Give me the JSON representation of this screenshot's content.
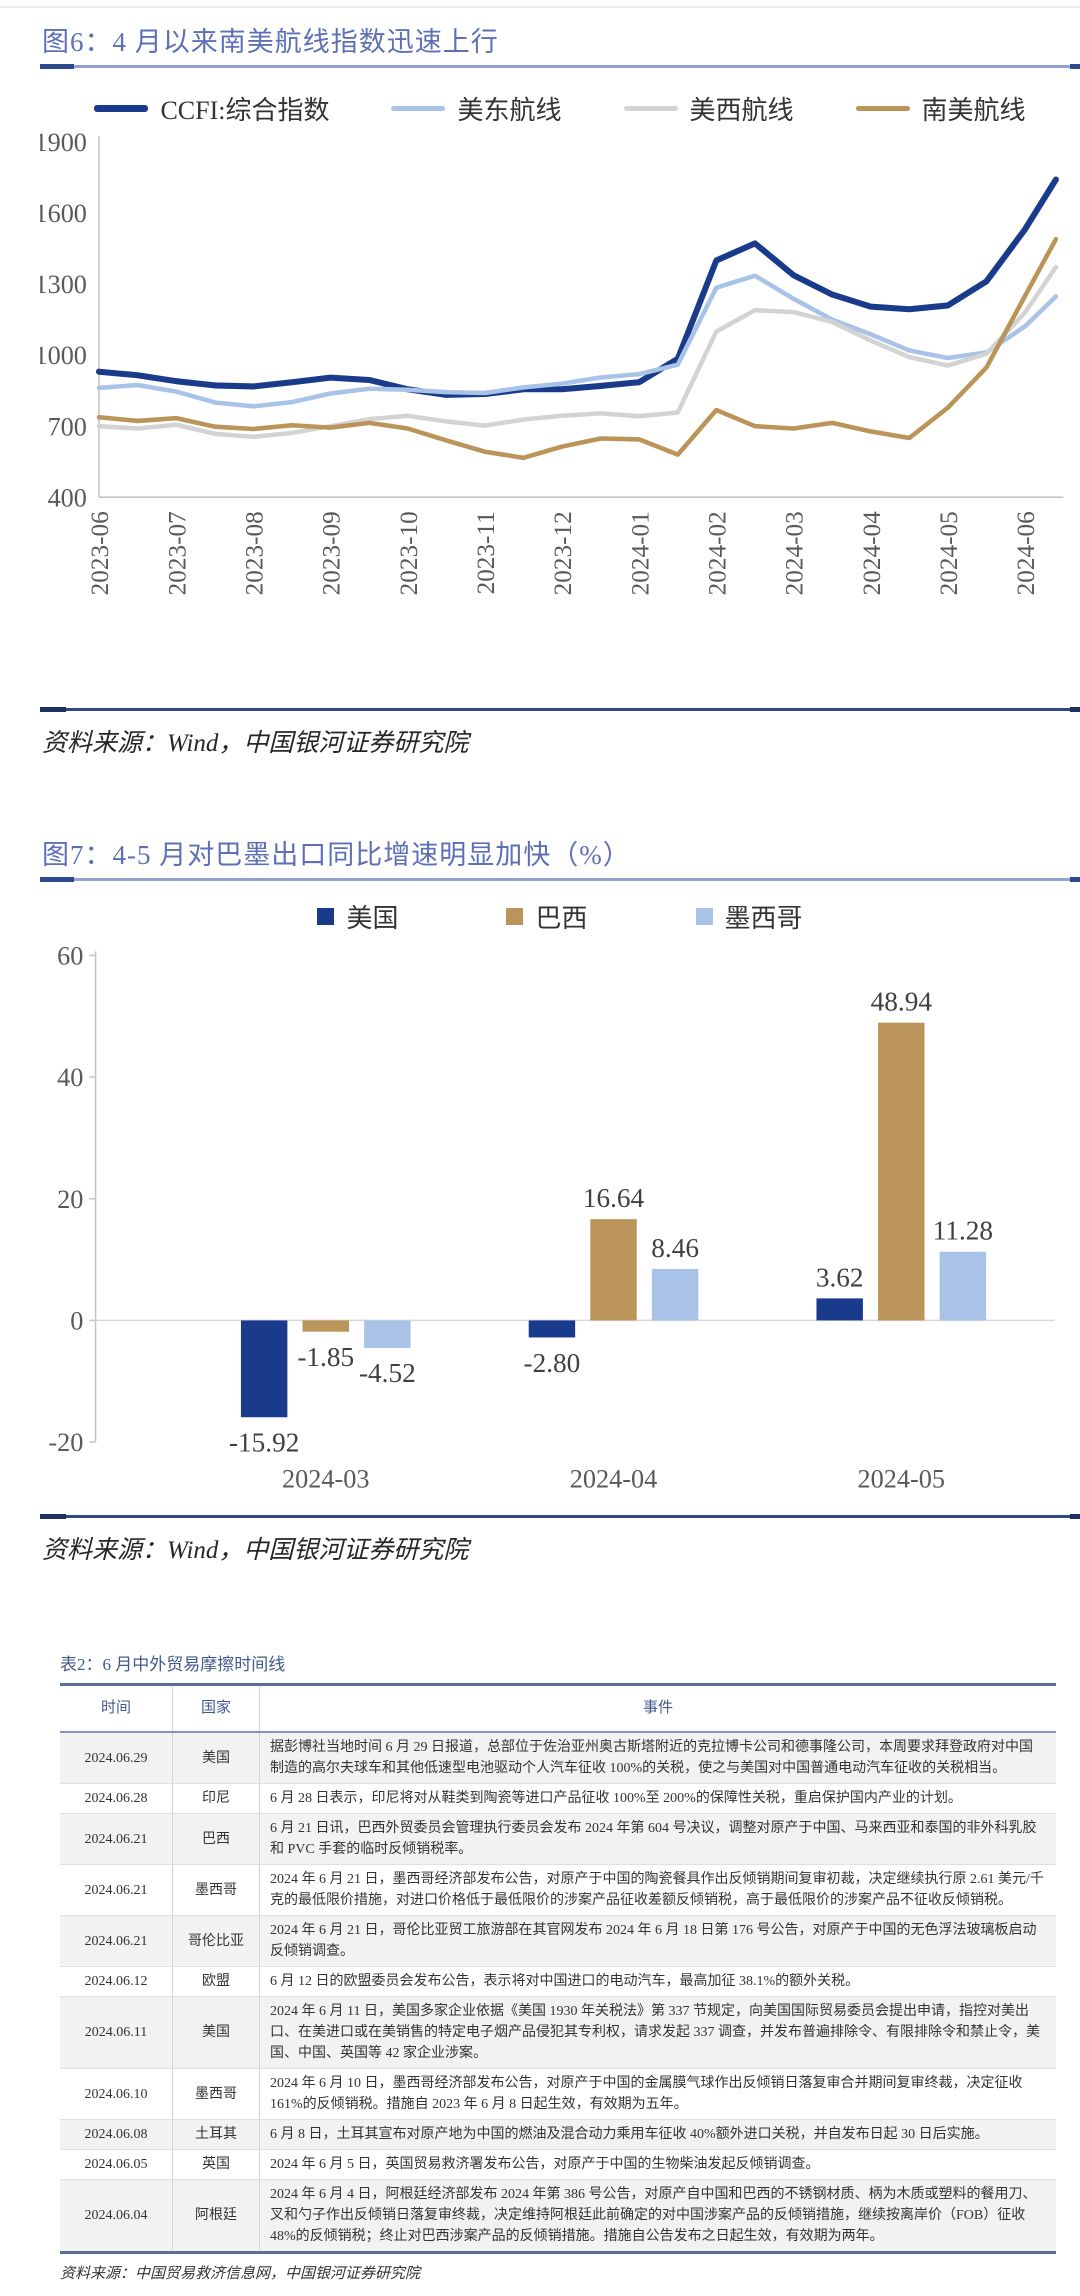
{
  "fig6": {
    "title": "图6：4 月以来南美航线指数迅速上行",
    "source": "资料来源：Wind，中国银河证券研究院",
    "chart_data": {
      "type": "line",
      "title": "图6：4 月以来南美航线指数迅速上行",
      "xlabel": "",
      "ylabel": "",
      "ylim": [
        400,
        1900
      ],
      "y_ticks": [
        400,
        700,
        1000,
        1300,
        1600,
        1900
      ],
      "grid": false,
      "legend_position": "top",
      "x_ticks": [
        "2023-06",
        "2023-07",
        "2023-08",
        "2023-09",
        "2023-10",
        "2023-11",
        "2023-12",
        "2024-01",
        "2024-02",
        "2024-03",
        "2024-04",
        "2024-05",
        "2024-06"
      ],
      "x": [
        0,
        0.5,
        1,
        1.5,
        2,
        2.5,
        3,
        3.5,
        4,
        4.5,
        5,
        5.5,
        6,
        6.5,
        7,
        7.5,
        8,
        8.5,
        9,
        9.5,
        10,
        10.5,
        11,
        11.5,
        12,
        12.4
      ],
      "series": [
        {
          "name": "CCFI:综合指数",
          "color": "#1a3a8c",
          "width": 6,
          "values": [
            930,
            915,
            890,
            872,
            868,
            886,
            905,
            895,
            856,
            832,
            836,
            856,
            856,
            870,
            886,
            985,
            1400,
            1472,
            1338,
            1256,
            1205,
            1194,
            1210,
            1312,
            1532,
            1742
          ]
        },
        {
          "name": "美东航线",
          "color": "#a9c3e8",
          "width": 4.5,
          "values": [
            862,
            874,
            846,
            800,
            784,
            802,
            838,
            858,
            854,
            844,
            840,
            864,
            880,
            906,
            920,
            960,
            1285,
            1336,
            1238,
            1150,
            1088,
            1020,
            988,
            1012,
            1122,
            1248
          ]
        },
        {
          "name": "美西航线",
          "color": "#d3d3d3",
          "width": 4.5,
          "values": [
            700,
            690,
            706,
            668,
            655,
            672,
            700,
            730,
            744,
            720,
            702,
            728,
            744,
            754,
            742,
            758,
            1100,
            1190,
            1182,
            1140,
            1062,
            992,
            956,
            1006,
            1180,
            1372
          ]
        },
        {
          "name": "南美航线",
          "color": "#ba9458",
          "width": 4.5,
          "values": [
            738,
            722,
            734,
            698,
            688,
            704,
            694,
            714,
            690,
            640,
            592,
            566,
            614,
            648,
            644,
            580,
            768,
            700,
            690,
            714,
            678,
            650,
            778,
            948,
            1250,
            1490
          ]
        }
      ]
    }
  },
  "fig7": {
    "title": "图7：4-5 月对巴墨出口同比增速明显加快（%）",
    "source": "资料来源：Wind，中国银河证券研究院",
    "chart_data": {
      "type": "bar",
      "title": "图7：4-5 月对巴墨出口同比增速明显加快（%）",
      "xlabel": "",
      "ylabel": "",
      "categories": [
        "2024-03",
        "2024-04",
        "2024-05"
      ],
      "ylim": [
        -20,
        60
      ],
      "y_ticks": [
        -20,
        0,
        20,
        40,
        60
      ],
      "grid": false,
      "legend_position": "top",
      "series": [
        {
          "name": "美国",
          "color": "#1a3a8c",
          "values": [
            -15.92,
            -2.8,
            3.62
          ]
        },
        {
          "name": "巴西",
          "color": "#ba9458",
          "values": [
            -1.85,
            16.64,
            48.94
          ]
        },
        {
          "name": "墨西哥",
          "color": "#a9c3e8",
          "values": [
            -4.52,
            8.46,
            11.28
          ]
        }
      ]
    }
  },
  "table2": {
    "title": "表2：6 月中外贸易摩擦时间线",
    "headers": [
      "时间",
      "国家",
      "事件"
    ],
    "rows": [
      {
        "date": "2024.06.29",
        "country": "美国",
        "event": "据彭博社当地时间 6 月 29 日报道，总部位于佐治亚州奥古斯塔附近的克拉博卡公司和德事隆公司，本周要求拜登政府对中国制造的高尔夫球车和其他低速型电池驱动个人汽车征收 100%的关税，使之与美国对中国普通电动汽车征收的关税相当。"
      },
      {
        "date": "2024.06.28",
        "country": "印尼",
        "event": "6 月 28 日表示，印尼将对从鞋类到陶瓷等进口产品征收 100%至 200%的保障性关税，重启保护国内产业的计划。"
      },
      {
        "date": "2024.06.21",
        "country": "巴西",
        "event": "6 月 21 日讯，巴西外贸委员会管理执行委员会发布 2024 年第 604 号决议，调整对原产于中国、马来西亚和泰国的非外科乳胶和 PVC 手套的临时反倾销税率。"
      },
      {
        "date": "2024.06.21",
        "country": "墨西哥",
        "event": "2024 年 6 月 21 日，墨西哥经济部发布公告，对原产于中国的陶瓷餐具作出反倾销期间复审初裁，决定继续执行原 2.61 美元/千克的最低限价措施，对进口价格低于最低限价的涉案产品征收差额反倾销税，高于最低限价的涉案产品不征收反倾销税。"
      },
      {
        "date": "2024.06.21",
        "country": "哥伦比亚",
        "event": "2024 年 6 月 21 日，哥伦比亚贸工旅游部在其官网发布 2024 年 6 月 18 日第 176 号公告，对原产于中国的无色浮法玻璃板启动反倾销调查。"
      },
      {
        "date": "2024.06.12",
        "country": "欧盟",
        "event": "6 月 12 日的欧盟委员会发布公告，表示将对中国进口的电动汽车，最高加征 38.1%的额外关税。"
      },
      {
        "date": "2024.06.11",
        "country": "美国",
        "event": "2024 年 6 月 11 日，美国多家企业依据《美国 1930 年关税法》第 337 节规定，向美国国际贸易委员会提出申请，指控对美出口、在美进口或在美销售的特定电子烟产品侵犯其专利权，请求发起 337 调查，并发布普遍排除令、有限排除令和禁止令，美国、中国、英国等 42 家企业涉案。"
      },
      {
        "date": "2024.06.10",
        "country": "墨西哥",
        "event": "2024 年 6 月 10 日，墨西哥经济部发布公告，对原产于中国的金属膜气球作出反倾销日落复审合并期间复审终裁，决定征收161%的反倾销税。措施自 2023 年 6 月 8 日起生效，有效期为五年。"
      },
      {
        "date": "2024.06.08",
        "country": "土耳其",
        "event": "6 月 8 日，土耳其宣布对原产地为中国的燃油及混合动力乘用车征收 40%额外进口关税，并自发布日起 30 日后实施。"
      },
      {
        "date": "2024.06.05",
        "country": "英国",
        "event": "2024 年 6 月 5 日，英国贸易救济署发布公告，对原产于中国的生物柴油发起反倾销调查。"
      },
      {
        "date": "2024.06.04",
        "country": "阿根廷",
        "event": "2024 年 6 月 4 日，阿根廷经济部发布 2024 年第 386 号公告，对原产自中国和巴西的不锈钢材质、柄为木质或塑料的餐用刀、叉和勺子作出反倾销日落复审终裁，决定维持阿根廷此前确定的对中国涉案产品的反倾销措施，继续按离岸价（FOB）征收 48%的反倾销税；终止对巴西涉案产品的反倾销措施。措施自公告发布之日起生效，有效期为两年。"
      }
    ],
    "source": "资料来源：中国贸易救济信息网，中国银河证券研究院"
  }
}
